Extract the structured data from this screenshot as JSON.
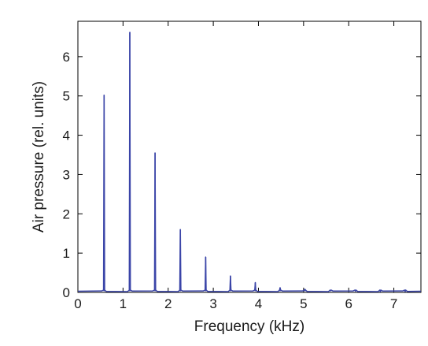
{
  "chart_data": {
    "type": "line",
    "title": "",
    "xlabel": "Frequency (kHz)",
    "ylabel": "Air pressure (rel. units)",
    "xlim": [
      0,
      7.6
    ],
    "ylim": [
      0,
      6.9
    ],
    "xticks": [
      0,
      1,
      2,
      3,
      4,
      5,
      6,
      7
    ],
    "yticks": [
      0,
      1,
      2,
      3,
      4,
      5,
      6
    ],
    "grid": false,
    "legend": "none",
    "line_color": "#3b45a8",
    "series": [
      {
        "peaks": [
          {
            "x": 0.58,
            "y": 5.02
          },
          {
            "x": 1.15,
            "y": 6.62
          },
          {
            "x": 1.71,
            "y": 3.55
          },
          {
            "x": 2.27,
            "y": 1.6
          },
          {
            "x": 2.83,
            "y": 0.9
          },
          {
            "x": 3.38,
            "y": 0.42
          },
          {
            "x": 3.93,
            "y": 0.25
          },
          {
            "x": 4.48,
            "y": 0.12
          },
          {
            "x": 5.03,
            "y": 0.08
          },
          {
            "x": 5.6,
            "y": 0.04
          },
          {
            "x": 6.15,
            "y": 0.03
          },
          {
            "x": 6.7,
            "y": 0.02
          },
          {
            "x": 7.25,
            "y": 0.02
          }
        ],
        "noise_floor": 0.03
      }
    ]
  }
}
